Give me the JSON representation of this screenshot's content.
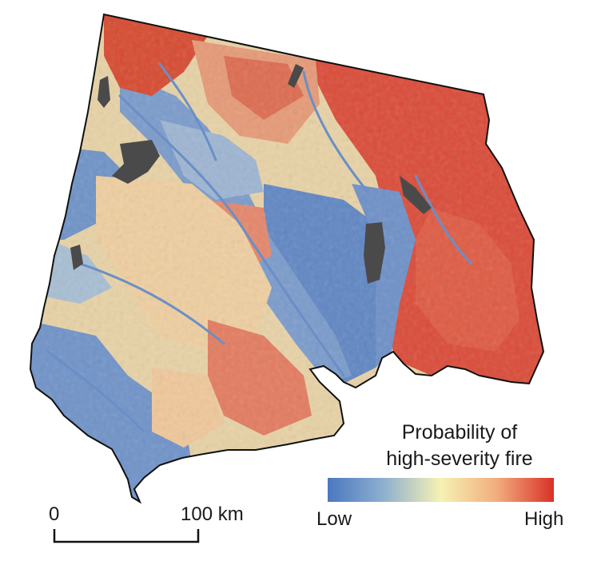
{
  "legend": {
    "title_line1": "Probability of",
    "title_line2": "high-severity fire",
    "low_label": "Low",
    "high_label": "High",
    "colors": [
      "#4a78c0",
      "#8fb0cf",
      "#f6f2b4",
      "#f1ac7c",
      "#d93128"
    ]
  },
  "scale_bar": {
    "start_label": "0",
    "end_label": "100 km"
  },
  "map": {
    "water_color": "#4a4a4a",
    "boundary_color": "#111111"
  }
}
